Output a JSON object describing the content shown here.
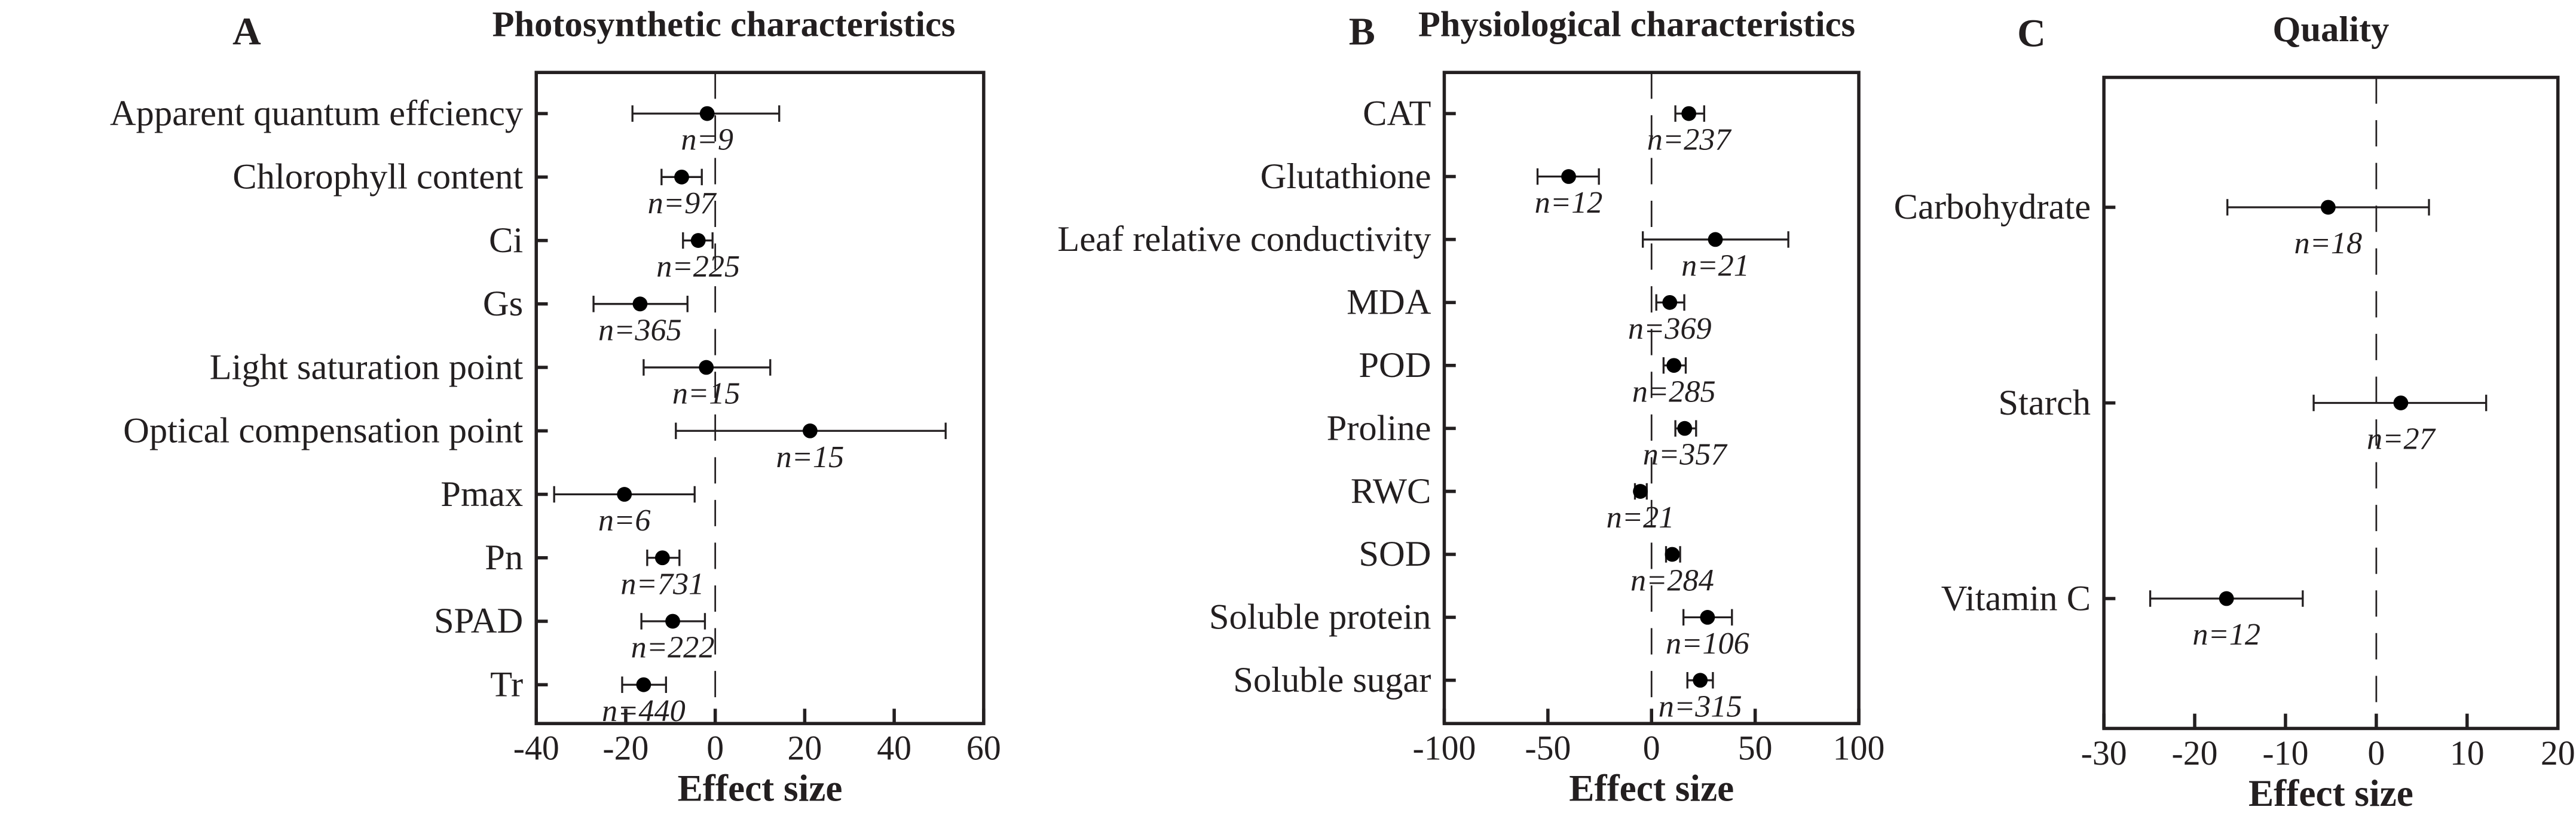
{
  "chart_data": [
    {
      "type": "forest",
      "panel": "A",
      "title": "Photosynthetic characteristics",
      "xlabel": "Effect size",
      "xlim": [
        -40,
        60
      ],
      "xticks": [
        -40,
        -20,
        0,
        20,
        40,
        60
      ],
      "reference_line": 0,
      "rows": [
        {
          "label": "Apparent quantum effciency",
          "mean": -1.8,
          "lo": -18.5,
          "hi": 14.3,
          "n": "n=9"
        },
        {
          "label": "Chlorophyll content",
          "mean": -7.5,
          "lo": -12,
          "hi": -3,
          "n": "n=97"
        },
        {
          "label": "Ci",
          "mean": -3.8,
          "lo": -7.2,
          "hi": -0.6,
          "n": "n=225"
        },
        {
          "label": "Gs",
          "mean": -16.8,
          "lo": -27.2,
          "hi": -6.2,
          "n": "n=365"
        },
        {
          "label": "Light saturation point",
          "mean": -2,
          "lo": -16,
          "hi": 12.3,
          "n": "n=15"
        },
        {
          "label": "Optical compensation point",
          "mean": 21.2,
          "lo": -8.8,
          "hi": 51.5,
          "n": "n=15"
        },
        {
          "label": "Pmax",
          "mean": -20.3,
          "lo": -36,
          "hi": -4.6,
          "n": "n=6"
        },
        {
          "label": "Pn",
          "mean": -11.8,
          "lo": -15.2,
          "hi": -8,
          "n": "n=731"
        },
        {
          "label": "SPAD",
          "mean": -9.5,
          "lo": -16.5,
          "hi": -2.3,
          "n": "n=222"
        },
        {
          "label": "Tr",
          "mean": -16,
          "lo": -20.8,
          "hi": -11,
          "n": "n=440"
        }
      ]
    },
    {
      "type": "forest",
      "panel": "B",
      "title": "Physiological characteristics",
      "xlabel": "Effect size",
      "xlim": [
        -100,
        100
      ],
      "xticks": [
        -100,
        -50,
        0,
        50,
        100
      ],
      "reference_line": 0,
      "rows": [
        {
          "label": "CAT",
          "mean": 18,
          "lo": 11.5,
          "hi": 25.4,
          "n": "n=237"
        },
        {
          "label": "Glutathione",
          "mean": -40,
          "lo": -55,
          "hi": -25.4,
          "n": "n=12"
        },
        {
          "label": "Leaf relative conductivity",
          "mean": 30.8,
          "lo": -4.2,
          "hi": 66,
          "n": "n=21"
        },
        {
          "label": "MDA",
          "mean": 8.8,
          "lo": 2.3,
          "hi": 15.8,
          "n": "n=369"
        },
        {
          "label": "POD",
          "mean": 10.8,
          "lo": 5.8,
          "hi": 16.5,
          "n": "n=285"
        },
        {
          "label": "Proline",
          "mean": 16,
          "lo": 11.5,
          "hi": 21.5,
          "n": "n=357"
        },
        {
          "label": "RWC",
          "mean": -5.4,
          "lo": -8,
          "hi": -2.3,
          "n": "n=21"
        },
        {
          "label": "SOD",
          "mean": 10,
          "lo": 7,
          "hi": 13.8,
          "n": "n=284"
        },
        {
          "label": "Soluble protein",
          "mean": 27,
          "lo": 15.4,
          "hi": 38.8,
          "n": "n=106"
        },
        {
          "label": "Soluble sugar",
          "mean": 23.5,
          "lo": 17.3,
          "hi": 29.6,
          "n": "n=315"
        }
      ]
    },
    {
      "type": "forest",
      "panel": "C",
      "title": "Quality",
      "xlabel": "Effect size",
      "xlim": [
        -30,
        20
      ],
      "xticks": [
        -30,
        -20,
        -10,
        0,
        10,
        20
      ],
      "reference_line": 0,
      "rows": [
        {
          "label": "Carbohydrate",
          "mean": -5.3,
          "lo": -16.4,
          "hi": 5.8,
          "n": "n=18"
        },
        {
          "label": "Starch",
          "mean": 2.7,
          "lo": -6.9,
          "hi": 12.1,
          "n": "n=27"
        },
        {
          "label": "Vitamin C",
          "mean": -16.5,
          "lo": -24.9,
          "hi": -8.1,
          "n": "n=12"
        }
      ]
    }
  ]
}
